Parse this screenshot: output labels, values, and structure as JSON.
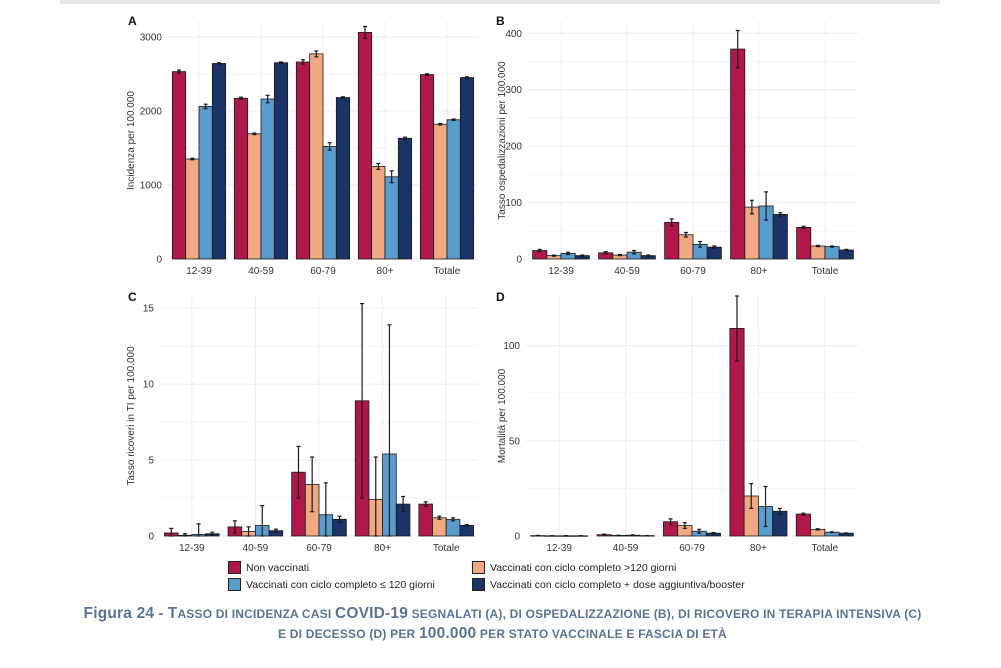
{
  "colors": {
    "non_vaccinati": "#b0184a",
    "oltre_120": "#f0a982",
    "entro_120": "#5b9ccf",
    "booster": "#1b3366"
  },
  "legend": {
    "items": [
      {
        "label": "Non vaccinati",
        "color": "#b0184a"
      },
      {
        "label": "Vaccinati con ciclo completo >120 giorni",
        "color": "#f0a982"
      },
      {
        "label": "Vaccinati con ciclo completo ≤ 120 giorni",
        "color": "#5b9ccf"
      },
      {
        "label": "Vaccinati con ciclo completo + dose aggiuntiva/booster",
        "color": "#1b3366"
      }
    ]
  },
  "caption": {
    "figure_label": "Figura 24",
    "dash": " - ",
    "part1_cap": "T",
    "part1_rest": "asso di incidenza casi ",
    "covid": "COVID-19",
    "part2": " segnalati (A), di ospedalizzazione (B), di ricovero in terapia intensiva (C) e di decesso (D) per ",
    "number": "100.000",
    "part3": " per stato vaccinale e fascia di età"
  },
  "chart_data": [
    {
      "type": "bar",
      "panel": "A",
      "categories": [
        "12-39",
        "40-59",
        "60-79",
        "80+",
        "Totale"
      ],
      "ylabel": "Incidenza per 100.000",
      "ylim": [
        0,
        3200
      ],
      "yticks": [
        0,
        1000,
        2000,
        3000
      ],
      "grid": true,
      "series": [
        {
          "name": "Non vaccinati",
          "values": [
            2530,
            2170,
            2660,
            3060,
            2490
          ],
          "err": [
            20,
            15,
            30,
            80,
            10
          ]
        },
        {
          "name": "Vaccinati con ciclo completo >120 giorni",
          "values": [
            1350,
            1690,
            2770,
            1250,
            1820
          ],
          "err": [
            10,
            10,
            40,
            40,
            10
          ]
        },
        {
          "name": "Vaccinati con ciclo completo ≤ 120 giorni",
          "values": [
            2060,
            2160,
            1520,
            1110,
            1880
          ],
          "err": [
            30,
            50,
            50,
            80,
            10
          ]
        },
        {
          "name": "Vaccinati con ciclo completo + dose aggiuntiva/booster",
          "values": [
            2640,
            2650,
            2180,
            1630,
            2450
          ],
          "err": [
            10,
            10,
            10,
            15,
            10
          ]
        }
      ]
    },
    {
      "type": "bar",
      "panel": "B",
      "categories": [
        "12-39",
        "40-59",
        "60-79",
        "80+",
        "Totale"
      ],
      "ylabel": "Tasso ospedalizzazioni per 100.000",
      "ylim": [
        0,
        420
      ],
      "yticks": [
        0,
        100,
        200,
        300,
        400
      ],
      "grid": true,
      "series": [
        {
          "name": "Non vaccinati",
          "values": [
            15,
            11,
            65,
            372,
            56
          ],
          "err": [
            2,
            2,
            6,
            33,
            2
          ]
        },
        {
          "name": "Vaccinati con ciclo completo >120 giorni",
          "values": [
            6,
            7,
            43,
            92,
            23
          ],
          "err": [
            1,
            1,
            4,
            12,
            1
          ]
        },
        {
          "name": "Vaccinati con ciclo completo ≤ 120 giorni",
          "values": [
            10,
            12,
            26,
            94,
            22
          ],
          "err": [
            2,
            3,
            5,
            25,
            1
          ]
        },
        {
          "name": "Vaccinati con ciclo completo + dose aggiuntiva/booster",
          "values": [
            6,
            6,
            21,
            79,
            16
          ],
          "err": [
            1,
            1,
            2,
            3,
            1
          ]
        }
      ]
    },
    {
      "type": "bar",
      "panel": "C",
      "categories": [
        "12-39",
        "40-59",
        "60-79",
        "80+",
        "Totale"
      ],
      "ylabel": "Tasso ricoveri in TI per 100.000",
      "ylim": [
        0,
        15.8
      ],
      "yticks": [
        0,
        5,
        10,
        15
      ],
      "grid": true,
      "series": [
        {
          "name": "Non vaccinati",
          "values": [
            0.2,
            0.6,
            4.2,
            8.9,
            2.1
          ],
          "err": [
            0.3,
            0.4,
            1.7,
            6.4,
            0.15
          ]
        },
        {
          "name": "Vaccinati con ciclo completo >120 giorni",
          "values": [
            0.05,
            0.3,
            3.4,
            2.4,
            1.2
          ],
          "err": [
            0.1,
            0.3,
            1.8,
            2.8,
            0.1
          ]
        },
        {
          "name": "Vaccinati con ciclo completo ≤ 120 giorni",
          "values": [
            0.1,
            0.7,
            1.4,
            5.4,
            1.1
          ],
          "err": [
            0.7,
            1.3,
            2.1,
            8.5,
            0.1
          ]
        },
        {
          "name": "Vaccinati con ciclo completo + dose aggiuntiva/booster",
          "values": [
            0.15,
            0.35,
            1.1,
            2.1,
            0.7
          ],
          "err": [
            0.1,
            0.1,
            0.2,
            0.5,
            0.05
          ]
        }
      ]
    },
    {
      "type": "bar",
      "panel": "D",
      "categories": [
        "12-39",
        "40-59",
        "60-79",
        "80+",
        "Totale"
      ],
      "ylabel": "Mortalità per 100.000",
      "ylim": [
        0,
        126
      ],
      "yticks": [
        0,
        50,
        100
      ],
      "grid": true,
      "series": [
        {
          "name": "Non vaccinati",
          "values": [
            0.2,
            0.7,
            7.5,
            109,
            11.5
          ],
          "err": [
            0.1,
            0.3,
            1.5,
            17,
            0.5
          ]
        },
        {
          "name": "Vaccinati con ciclo completo >120 giorni",
          "values": [
            0.1,
            0.3,
            5.5,
            21,
            3.5
          ],
          "err": [
            0.05,
            0.1,
            1.5,
            6.5,
            0.3
          ]
        },
        {
          "name": "Vaccinati con ciclo completo ≤ 120 giorni",
          "values": [
            0.1,
            0.4,
            2.5,
            15.5,
            2
          ],
          "err": [
            0.1,
            0.2,
            1,
            10.5,
            0.2
          ]
        },
        {
          "name": "Vaccinati con ciclo completo + dose aggiuntiva/booster",
          "values": [
            0.1,
            0.2,
            1.5,
            13,
            1.5
          ],
          "err": [
            0.05,
            0.05,
            0.3,
            1.5,
            0.1
          ]
        }
      ]
    }
  ]
}
